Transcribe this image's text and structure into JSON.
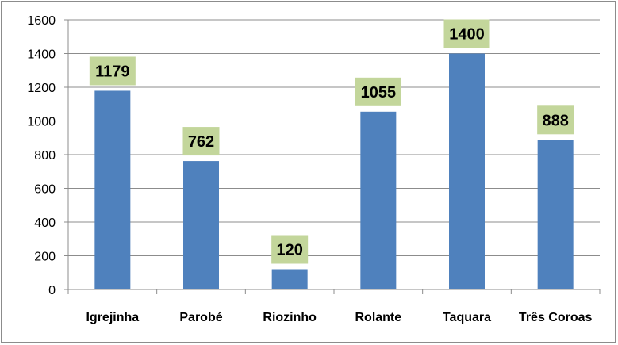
{
  "chart_data": {
    "type": "bar",
    "title": "",
    "xlabel": "",
    "ylabel": "",
    "categories": [
      "Igrejinha",
      "Parobé",
      "Riozinho",
      "Rolante",
      "Taquara",
      "Três Coroas"
    ],
    "values": [
      1179,
      762,
      120,
      1055,
      1400,
      888
    ],
    "data_labels": [
      "1179",
      "762",
      "120",
      "1055",
      "1400",
      "888"
    ],
    "ylim": [
      0,
      1600
    ],
    "yticks": [
      "0",
      "200",
      "400",
      "600",
      "800",
      "1000",
      "1200",
      "1400",
      "1600"
    ],
    "grid": true,
    "legend": "none",
    "colors": {
      "bar": "#4f81bd",
      "data_label_bg": "#c3d69b",
      "grid": "#8c8c8c",
      "axis": "#8c8c8c"
    }
  }
}
